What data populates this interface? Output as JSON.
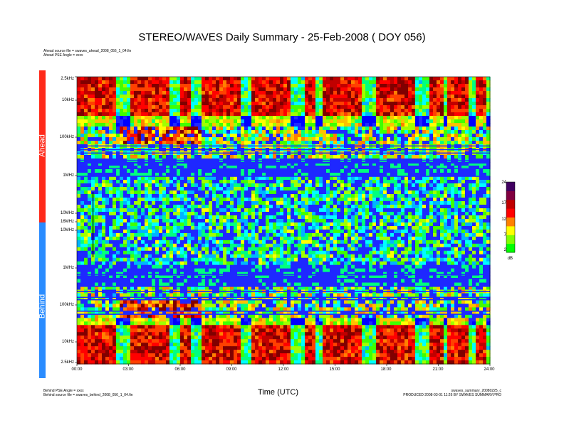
{
  "chart_data": {
    "type": "heatmap",
    "title": "STEREO/WAVES Daily Summary - 25-Feb-2008 ( DOY 056)",
    "xlabel": "Time (UTC)",
    "x_ticks": [
      "00:00",
      "03:00",
      "06:00",
      "09:00",
      "12:00",
      "15:00",
      "18:00",
      "21:00",
      "24:00"
    ],
    "xlim": [
      "00:00",
      "24:00"
    ],
    "panels": [
      {
        "name": "Ahead",
        "color": "#ff2a1a",
        "y_ticks": [
          "2.5kHz",
          "10kHz",
          "100kHz",
          "1MHz",
          "10MHz",
          "16MHz"
        ],
        "header": [
          "Ahead source file = swaves_ahead_2008_056_1_04.fin",
          "Ahead PSE Angle = xxxx"
        ]
      },
      {
        "name": "Behind",
        "color": "#2a8cff",
        "y_ticks": [
          "10MHz",
          "1MHz",
          "100kHz",
          "10kHz",
          "2.5kHz"
        ],
        "footer": [
          "Behind PSE Angle = xxxx",
          "Behind source file = swaves_behind_2008_056_1_04.fin"
        ]
      }
    ],
    "colorbar": {
      "unit": "dB",
      "ticks": [
        "24",
        "17",
        "12",
        "7",
        "2"
      ],
      "range": [
        2,
        24
      ],
      "colors": [
        "#00ff00",
        "#80ff00",
        "#ffff00",
        "#ff8000",
        "#ff0000",
        "#c00000",
        "#800040",
        "#400060"
      ]
    }
  },
  "footer_right": [
    "swaves_summary_20080225_c",
    "PRODUCED 2008-03-01 11:26 BY SWAVES SUMMARY.PRO"
  ]
}
